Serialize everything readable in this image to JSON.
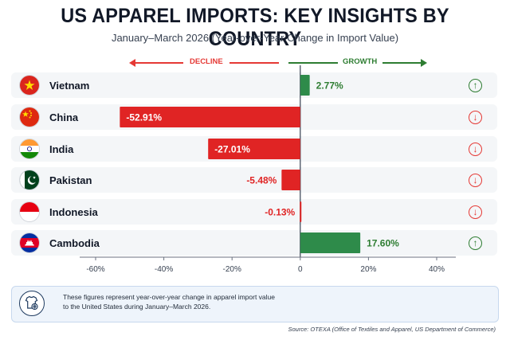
{
  "title": "US APPAREL IMPORTS: KEY INSIGHTS BY COUNTRY",
  "subtitle": "January–March 2026 (Year-over-Year Change in Import Value)",
  "direction_labels": {
    "decline": "DECLINE",
    "growth": "GROWTH"
  },
  "colors": {
    "positive": "#2e8b4a",
    "negative": "#e02424",
    "positive_text": "#2e7d32",
    "negative_text": "#e02424"
  },
  "chart_data": {
    "type": "bar",
    "orientation": "horizontal",
    "categories": [
      "Vietnam",
      "China",
      "India",
      "Pakistan",
      "Indonesia",
      "Cambodia"
    ],
    "values": [
      2.77,
      -52.91,
      -27.01,
      -5.48,
      -0.13,
      17.6
    ],
    "value_labels": [
      "2.77%",
      "-52.91%",
      "-27.01%",
      "-5.48%",
      "-0.13%",
      "17.60%"
    ],
    "trend_icons": [
      "up-arrow-icon",
      "down-arrow-icon",
      "down-arrow-icon",
      "down-arrow-icon",
      "down-arrow-icon",
      "up-arrow-icon"
    ],
    "xlim": [
      -60,
      40
    ],
    "xticks": [
      -60,
      -40,
      -20,
      0,
      20,
      40
    ],
    "xtick_labels": [
      "-60%",
      "-40%",
      "-20%",
      "0",
      "20%",
      "40%"
    ],
    "grid": false,
    "units": "%"
  },
  "note": {
    "icon": "apparel-globe-icon",
    "line1": "These figures represent year-over-year change in apparel import value",
    "line2": "to the United States during January–March 2026."
  },
  "source": "Source: OTEXA (Office of Textiles and Apparel, US Department of Commerce)"
}
